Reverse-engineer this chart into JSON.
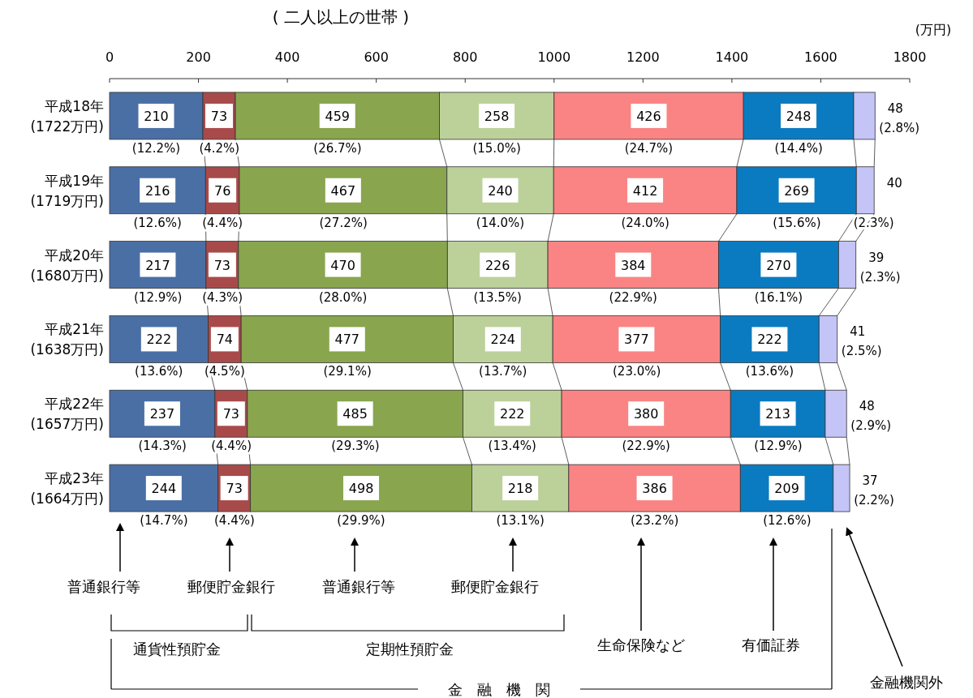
{
  "chart_data": {
    "type": "bar",
    "orientation": "horizontal",
    "stacked": true,
    "title": "( 二人以上の世帯 )",
    "xlabel": "(万円)",
    "categories": [
      "平成18年",
      "平成19年",
      "平成20年",
      "平成21年",
      "平成22年",
      "平成23年"
    ],
    "totals": [
      "(1722万円)",
      "(1719万円)",
      "(1680万円)",
      "(1638万円)",
      "(1657万円)",
      "(1664万円)"
    ],
    "xlim": [
      0,
      1800
    ],
    "xticks": [
      0,
      200,
      400,
      600,
      800,
      1000,
      1200,
      1400,
      1600,
      1800
    ],
    "grid": false,
    "data_labels": true,
    "series": [
      {
        "color": "#4a6fa5",
        "values": [
          210,
          216,
          217,
          222,
          237,
          244
        ]
      },
      {
        "color": "#a94a4a",
        "values": [
          73,
          76,
          73,
          74,
          73,
          73
        ]
      },
      {
        "color": "#89a54e",
        "values": [
          459,
          467,
          470,
          477,
          485,
          498
        ]
      },
      {
        "color": "#bcd19a",
        "values": [
          258,
          240,
          226,
          224,
          222,
          218
        ]
      },
      {
        "color": "#fa8484",
        "values": [
          426,
          412,
          384,
          377,
          380,
          386
        ]
      },
      {
        "color": "#0b7bc1",
        "values": [
          248,
          269,
          270,
          222,
          213,
          209
        ]
      },
      {
        "color": "#c4c4f6",
        "values": [
          48,
          40,
          39,
          41,
          48,
          37
        ]
      }
    ],
    "annotations": [
      {
        "text": "(12.2%)",
        "x": 105,
        "y": "平成18年"
      },
      {
        "text": "(4.2%)",
        "x": 247,
        "y": "平成18年"
      },
      {
        "text": "(26.7%)",
        "x": 513,
        "y": "平成18年"
      },
      {
        "text": "(15.0%)",
        "x": 871,
        "y": "平成18年"
      },
      {
        "text": "(24.7%)",
        "x": 1213,
        "y": "平成18年"
      },
      {
        "text": "(14.4%)",
        "x": 1550,
        "y": "平成18年"
      },
      {
        "text": "(2.8%)",
        "x": 1722,
        "y": "平成18年"
      },
      {
        "text": "(12.6%)",
        "x": 108,
        "y": "平成19年"
      },
      {
        "text": "(4.4%)",
        "x": 254,
        "y": "平成19年"
      },
      {
        "text": "(27.2%)",
        "x": 526,
        "y": "平成19年"
      },
      {
        "text": "(14.0%)",
        "x": 879,
        "y": "平成19年"
      },
      {
        "text": "(24.0%)",
        "x": 1205,
        "y": "平成19年"
      },
      {
        "text": "(15.6%)",
        "x": 1546,
        "y": "平成19年"
      },
      {
        "text": "(2.3%)",
        "x": 1719,
        "y": "平成19年"
      },
      {
        "text": "(12.9%)",
        "x": 109,
        "y": "平成20年"
      },
      {
        "text": "(4.3%)",
        "x": 254,
        "y": "平成20年"
      },
      {
        "text": "(28.0%)",
        "x": 525,
        "y": "平成20年"
      },
      {
        "text": "(13.5%)",
        "x": 873,
        "y": "平成20年"
      },
      {
        "text": "(22.9%)",
        "x": 1178,
        "y": "平成20年"
      },
      {
        "text": "(16.1%)",
        "x": 1505,
        "y": "平成20年"
      },
      {
        "text": "(2.3%)",
        "x": 1679,
        "y": "平成20年"
      },
      {
        "text": "(13.6%)",
        "x": 111,
        "y": "平成21年"
      },
      {
        "text": "(4.5%)",
        "x": 259,
        "y": "平成21年"
      },
      {
        "text": "(29.1%)",
        "x": 535,
        "y": "平成21年"
      },
      {
        "text": "(13.7%)",
        "x": 885,
        "y": "平成21年"
      },
      {
        "text": "(23.0%)",
        "x": 1186,
        "y": "平成21年"
      },
      {
        "text": "(13.6%)",
        "x": 1485,
        "y": "平成21年"
      },
      {
        "text": "(2.5%)",
        "x": 1637,
        "y": "平成21年"
      },
      {
        "text": "(14.3%)",
        "x": 119,
        "y": "平成22年"
      },
      {
        "text": "(4.4%)",
        "x": 274,
        "y": "平成22年"
      },
      {
        "text": "(29.3%)",
        "x": 553,
        "y": "平成22年"
      },
      {
        "text": "(13.4%)",
        "x": 906,
        "y": "平成22年"
      },
      {
        "text": "(22.9%)",
        "x": 1207,
        "y": "平成22年"
      },
      {
        "text": "(12.9%)",
        "x": 1504,
        "y": "平成22年"
      },
      {
        "text": "(2.9%)",
        "x": 1658,
        "y": "平成22年"
      },
      {
        "text": "(14.7%)",
        "x": 122,
        "y": "平成23年"
      },
      {
        "text": "(4.4%)",
        "x": 281,
        "y": "平成23年"
      },
      {
        "text": "(29.9%)",
        "x": 566,
        "y": "平成23年"
      },
      {
        "text": "(13.1%)",
        "x": 924,
        "y": "平成23年"
      },
      {
        "text": "(23.2%)",
        "x": 1226,
        "y": "平成23年"
      },
      {
        "text": "(12.6%)",
        "x": 1524,
        "y": "平成23年"
      },
      {
        "text": "(2.2%)",
        "x": 1665,
        "y": "平成23年"
      },
      "普通銀行等",
      "郵便貯金銀行",
      "普通銀行等",
      "郵便貯金銀行",
      "生命保険など",
      "有価証券",
      "金融機関外",
      "通貨性預貯金",
      "定期性預貯金",
      "金　融　機　関"
    ]
  }
}
